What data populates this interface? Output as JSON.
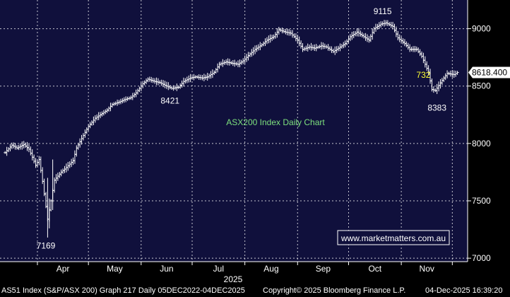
{
  "chart_data": {
    "type": "ohlc",
    "title": "ASX200 Index Daily Chart",
    "watermark": "www.marketmatters.com.au",
    "year_label": "2025",
    "x_labels": [
      "Apr",
      "May",
      "Jun",
      "Jul",
      "Aug",
      "Sep",
      "Oct",
      "Nov"
    ],
    "y_ticks": [
      7000,
      7500,
      8000,
      8500,
      9000
    ],
    "ylim": [
      6970,
      9250
    ],
    "last_value": "8618.400",
    "last_value_num": 8618.4,
    "annotations": [
      {
        "text": "7169",
        "value": 7169,
        "color": "#ffffff"
      },
      {
        "text": "8421",
        "value": 8421,
        "color": "#ffffff"
      },
      {
        "text": "9115",
        "value": 9115,
        "color": "#ffffff"
      },
      {
        "text": "732",
        "value": 732,
        "color": "#ffff33"
      },
      {
        "text": "8383",
        "value": 8383,
        "color": "#ffffff"
      }
    ],
    "series": [
      {
        "points": [
          {
            "date": "2025-03-13",
            "close": 7920
          },
          {
            "date": "2025-03-17",
            "close": 7985
          },
          {
            "date": "2025-03-20",
            "close": 7960
          },
          {
            "date": "2025-03-24",
            "close": 7990
          },
          {
            "date": "2025-03-27",
            "close": 7950
          },
          {
            "date": "2025-03-31",
            "close": 7810
          },
          {
            "date": "2025-04-02",
            "close": 7860
          },
          {
            "date": "2025-04-04",
            "close": 7670
          },
          {
            "date": "2025-04-07",
            "close": 7340
          },
          {
            "date": "2025-04-09",
            "close": 7500
          },
          {
            "date": "2025-04-11",
            "close": 7680
          },
          {
            "date": "2025-04-15",
            "close": 7750
          },
          {
            "date": "2025-04-18",
            "close": 7790
          },
          {
            "date": "2025-04-22",
            "close": 7850
          },
          {
            "date": "2025-04-24",
            "close": 7960
          },
          {
            "date": "2025-04-28",
            "close": 8070
          },
          {
            "date": "2025-05-01",
            "close": 8150
          },
          {
            "date": "2025-05-05",
            "close": 8220
          },
          {
            "date": "2025-05-08",
            "close": 8250
          },
          {
            "date": "2025-05-12",
            "close": 8290
          },
          {
            "date": "2025-05-15",
            "close": 8340
          },
          {
            "date": "2025-05-19",
            "close": 8360
          },
          {
            "date": "2025-05-22",
            "close": 8380
          },
          {
            "date": "2025-05-26",
            "close": 8400
          },
          {
            "date": "2025-05-29",
            "close": 8440
          },
          {
            "date": "2025-06-02",
            "close": 8520
          },
          {
            "date": "2025-06-05",
            "close": 8560
          },
          {
            "date": "2025-06-09",
            "close": 8540
          },
          {
            "date": "2025-06-12",
            "close": 8530
          },
          {
            "date": "2025-06-16",
            "close": 8500
          },
          {
            "date": "2025-06-19",
            "close": 8480
          },
          {
            "date": "2025-06-23",
            "close": 8490
          },
          {
            "date": "2025-06-26",
            "close": 8540
          },
          {
            "date": "2025-06-30",
            "close": 8570
          },
          {
            "date": "2025-07-03",
            "close": 8580
          },
          {
            "date": "2025-07-07",
            "close": 8570
          },
          {
            "date": "2025-07-10",
            "close": 8580
          },
          {
            "date": "2025-07-14",
            "close": 8620
          },
          {
            "date": "2025-07-17",
            "close": 8690
          },
          {
            "date": "2025-07-21",
            "close": 8710
          },
          {
            "date": "2025-07-24",
            "close": 8700
          },
          {
            "date": "2025-07-28",
            "close": 8690
          },
          {
            "date": "2025-07-31",
            "close": 8720
          },
          {
            "date": "2025-08-04",
            "close": 8780
          },
          {
            "date": "2025-08-07",
            "close": 8820
          },
          {
            "date": "2025-08-11",
            "close": 8860
          },
          {
            "date": "2025-08-14",
            "close": 8900
          },
          {
            "date": "2025-08-18",
            "close": 8930
          },
          {
            "date": "2025-08-21",
            "close": 8990
          },
          {
            "date": "2025-08-25",
            "close": 8970
          },
          {
            "date": "2025-08-28",
            "close": 8960
          },
          {
            "date": "2025-09-01",
            "close": 8900
          },
          {
            "date": "2025-09-04",
            "close": 8820
          },
          {
            "date": "2025-09-08",
            "close": 8840
          },
          {
            "date": "2025-09-11",
            "close": 8830
          },
          {
            "date": "2025-09-15",
            "close": 8850
          },
          {
            "date": "2025-09-18",
            "close": 8840
          },
          {
            "date": "2025-09-22",
            "close": 8800
          },
          {
            "date": "2025-09-25",
            "close": 8830
          },
          {
            "date": "2025-09-29",
            "close": 8870
          },
          {
            "date": "2025-10-02",
            "close": 8930
          },
          {
            "date": "2025-10-06",
            "close": 8970
          },
          {
            "date": "2025-10-09",
            "close": 8940
          },
          {
            "date": "2025-10-13",
            "close": 8900
          },
          {
            "date": "2025-10-16",
            "close": 9000
          },
          {
            "date": "2025-10-20",
            "close": 9040
          },
          {
            "date": "2025-10-23",
            "close": 9050
          },
          {
            "date": "2025-10-27",
            "close": 9020
          },
          {
            "date": "2025-10-30",
            "close": 8920
          },
          {
            "date": "2025-11-03",
            "close": 8870
          },
          {
            "date": "2025-11-06",
            "close": 8820
          },
          {
            "date": "2025-11-10",
            "close": 8820
          },
          {
            "date": "2025-11-13",
            "close": 8760
          },
          {
            "date": "2025-11-17",
            "close": 8620
          },
          {
            "date": "2025-11-19",
            "close": 8470
          },
          {
            "date": "2025-11-21",
            "close": 8460
          },
          {
            "date": "2025-11-25",
            "close": 8550
          },
          {
            "date": "2025-11-28",
            "close": 8610
          },
          {
            "date": "2025-12-02",
            "close": 8600
          },
          {
            "date": "2025-12-04",
            "close": 8618.4
          }
        ]
      }
    ]
  },
  "footer": {
    "left": "AS51 Index (S&P/ASX 200) Graph 217 Daily 05DEC2022-04DEC2025",
    "middle": "Copyright© 2025 Bloomberg Finance L.P.",
    "right": "04-Dec-2025 16:39:20"
  }
}
